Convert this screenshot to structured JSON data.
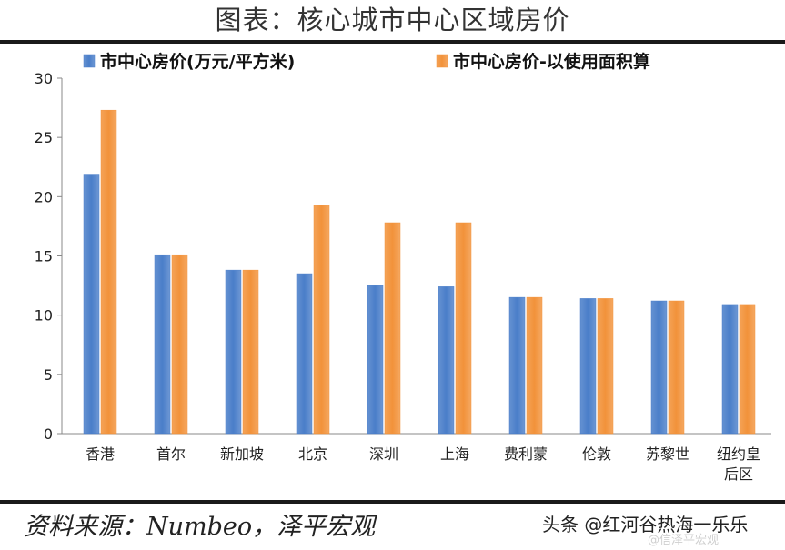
{
  "title": "图表：核心城市中心区域房价",
  "source": "资料来源：Numbeo，泽平宏观",
  "watermark": "头条 @红河谷热海一乐乐",
  "watermark_faint": "@信泽平宏观",
  "colors": {
    "series1": "#4a7ec9",
    "series2": "#f2923a",
    "axis": "#888888"
  },
  "chart_data": {
    "type": "bar",
    "categories": [
      [
        "香港"
      ],
      [
        "首尔"
      ],
      [
        "新加坡"
      ],
      [
        "北京"
      ],
      [
        "深圳"
      ],
      [
        "上海"
      ],
      [
        "费利蒙"
      ],
      [
        "伦敦"
      ],
      [
        "苏黎世"
      ],
      [
        "纽约皇",
        "后区"
      ]
    ],
    "series": [
      {
        "name": "市中心房价(万元/平方米)",
        "values": [
          21.9,
          15.1,
          13.8,
          13.5,
          12.5,
          12.4,
          11.5,
          11.4,
          11.2,
          10.9
        ]
      },
      {
        "name": "市中心房价-以使用面积算",
        "values": [
          27.3,
          15.1,
          13.8,
          19.3,
          17.8,
          17.8,
          11.5,
          11.4,
          11.2,
          10.9
        ]
      }
    ],
    "ylim": [
      0,
      30
    ],
    "yticks": [
      0,
      5,
      10,
      15,
      20,
      25,
      30
    ],
    "legend": "top",
    "grid": false
  }
}
